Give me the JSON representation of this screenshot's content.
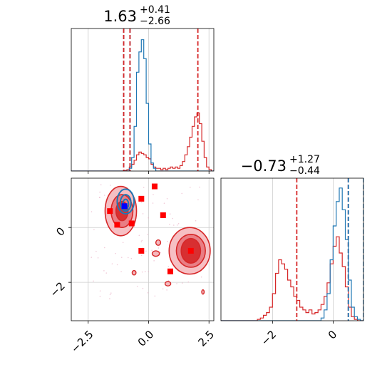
{
  "chart_data": {
    "type": "corner",
    "parameters": [
      {
        "title": {
          "value": "1.63",
          "upper": "+0.41",
          "lower": "−2.66"
        },
        "xlim": [
          -3.2,
          2.7
        ],
        "xticks": [
          {
            "v": -2.5,
            "label": "−2.5"
          },
          {
            "v": 0,
            "label": "0.0"
          },
          {
            "v": 2.5,
            "label": "2.5"
          }
        ],
        "histograms": [
          {
            "name": "red",
            "color": "#d62728",
            "bin_start": -3.2,
            "bin_width": 0.1,
            "counts": [
              0,
              0,
              0,
              0,
              0,
              0,
              0,
              0,
              0,
              0,
              0,
              0,
              0,
              0,
              0,
              0,
              0,
              0,
              0,
              0,
              0,
              0,
              0.005,
              0.01,
              0.03,
              0.05,
              0.08,
              0.12,
              0.14,
              0.13,
              0.12,
              0.1,
              0.09,
              0.05,
              0.03,
              0.02,
              0.02,
              0.01,
              0.02,
              0.01,
              0.02,
              0.03,
              0.02,
              0.03,
              0.02,
              0.04,
              0.07,
              0.12,
              0.18,
              0.25,
              0.33,
              0.4,
              0.43,
              0.35,
              0.22,
              0.1,
              0.03,
              0.01,
              0,
              0
            ]
          },
          {
            "name": "blue",
            "color": "#1f77b4",
            "bin_start": -3.2,
            "bin_width": 0.1,
            "counts": [
              0,
              0,
              0,
              0,
              0,
              0,
              0,
              0,
              0,
              0,
              0,
              0,
              0,
              0,
              0,
              0,
              0,
              0,
              0,
              0,
              0,
              0,
              0,
              0,
              0.02,
              0.1,
              0.33,
              0.73,
              0.88,
              0.97,
              0.83,
              0.5,
              0.2,
              0.06,
              0.02,
              0,
              0,
              0,
              0,
              0,
              0,
              0,
              0,
              0,
              0,
              0,
              0,
              0,
              0,
              0,
              0,
              0,
              0,
              0,
              0,
              0,
              0,
              0,
              0,
              0
            ]
          }
        ],
        "vlines": [
          {
            "v": -1.03,
            "color": "#1f77b4"
          },
          {
            "v": -0.77,
            "color": "#1f77b4"
          },
          {
            "v": -1.03,
            "color": "#d62728"
          },
          {
            "v": -0.77,
            "color": "#d62728"
          },
          {
            "v": 2.04,
            "color": "#d62728"
          }
        ]
      },
      {
        "title": {
          "value": "−0.73",
          "upper": "+1.27",
          "lower": "−0.44"
        },
        "xlim": [
          -3.7,
          1.0
        ],
        "xticks": [
          {
            "v": -2,
            "label": "−2"
          },
          {
            "v": 0,
            "label": "0"
          }
        ],
        "histograms": [
          {
            "name": "red",
            "color": "#d62728",
            "bin_start": -3.7,
            "bin_width": 0.1,
            "counts": [
              0,
              0,
              0,
              0,
              0,
              0,
              0,
              0,
              0,
              0,
              0,
              0,
              0.01,
              0.02,
              0.04,
              0.06,
              0.1,
              0.2,
              0.35,
              0.45,
              0.42,
              0.38,
              0.3,
              0.25,
              0.18,
              0.15,
              0.1,
              0.08,
              0.06,
              0.08,
              0.05,
              0.06,
              0.08,
              0.12,
              0.18,
              0.28,
              0.42,
              0.55,
              0.62,
              0.5,
              0.4,
              0.25,
              0.1,
              0.03,
              0.01,
              0,
              0
            ]
          },
          {
            "name": "blue",
            "color": "#1f77b4",
            "bin_start": -3.7,
            "bin_width": 0.1,
            "counts": [
              0,
              0,
              0,
              0,
              0,
              0,
              0,
              0,
              0,
              0,
              0,
              0,
              0,
              0,
              0,
              0,
              0,
              0,
              0,
              0,
              0,
              0,
              0,
              0,
              0,
              0,
              0,
              0,
              0,
              0,
              0,
              0,
              0,
              0.02,
              0.08,
              0.2,
              0.45,
              0.7,
              0.88,
              0.98,
              0.82,
              0.6,
              0.3,
              0.1,
              0.03,
              0.01,
              0
            ]
          }
        ],
        "vlines": [
          {
            "v": -1.2,
            "color": "#d62728"
          },
          {
            "v": 0.5,
            "color": "#d62728"
          },
          {
            "v": 0.5,
            "color": "#1f77b4"
          },
          {
            "v": 1.0,
            "color": "#1f77b4"
          }
        ]
      }
    ],
    "scatter_2d": {
      "xlim": [
        -3.2,
        2.7
      ],
      "ylim": [
        -3.4,
        1.8
      ],
      "yticks": [
        {
          "v": 0,
          "label": "0"
        },
        {
          "v": -2,
          "label": "−2"
        }
      ],
      "red_contours": [
        {
          "cx": -1.15,
          "cy": 0.6,
          "rx": 0.65,
          "ry": 0.9,
          "level": 1
        },
        {
          "cx": -1.1,
          "cy": 0.6,
          "rx": 0.45,
          "ry": 0.6,
          "level": 2
        },
        {
          "cx": -1.1,
          "cy": 0.6,
          "rx": 0.25,
          "ry": 0.35,
          "level": 3
        },
        {
          "cx": 1.7,
          "cy": -0.85,
          "rx": 0.85,
          "ry": 0.85,
          "level": 1
        },
        {
          "cx": 1.75,
          "cy": -0.85,
          "rx": 0.6,
          "ry": 0.6,
          "level": 2
        },
        {
          "cx": 1.75,
          "cy": -0.85,
          "rx": 0.4,
          "ry": 0.45,
          "level": 3
        }
      ],
      "blue_contours": [
        {
          "cx": -0.95,
          "cy": 0.95,
          "rx": 0.35,
          "ry": 0.45
        },
        {
          "cx": -0.95,
          "cy": 0.9,
          "rx": 0.22,
          "ry": 0.3
        },
        {
          "cx": -0.95,
          "cy": 0.85,
          "rx": 0.12,
          "ry": 0.18
        }
      ],
      "red_points": [
        {
          "x": 0.25,
          "y": 1.5
        },
        {
          "x": -0.3,
          "y": 1.05
        },
        {
          "x": 0.6,
          "y": 0.45
        },
        {
          "x": -1.6,
          "y": 0.6
        },
        {
          "x": -1.3,
          "y": 0.1
        },
        {
          "x": -0.7,
          "y": 0.15
        },
        {
          "x": -0.3,
          "y": -0.85
        },
        {
          "x": 0.9,
          "y": -1.6
        },
        {
          "x": 1.75,
          "y": -0.85
        }
      ],
      "blue_points": [
        {
          "x": -1.0,
          "y": 0.78
        }
      ],
      "red_blobs": [
        {
          "x": 0.3,
          "y": -0.95,
          "rx": 0.15,
          "ry": 0.1
        },
        {
          "x": -0.6,
          "y": -1.65,
          "rx": 0.08,
          "ry": 0.08
        },
        {
          "x": 0.8,
          "y": -2.05,
          "rx": 0.12,
          "ry": 0.08
        },
        {
          "x": 2.25,
          "y": -2.35,
          "rx": 0.05,
          "ry": 0.08
        },
        {
          "x": 0.4,
          "y": -0.55,
          "rx": 0.1,
          "ry": 0.1
        }
      ]
    }
  }
}
